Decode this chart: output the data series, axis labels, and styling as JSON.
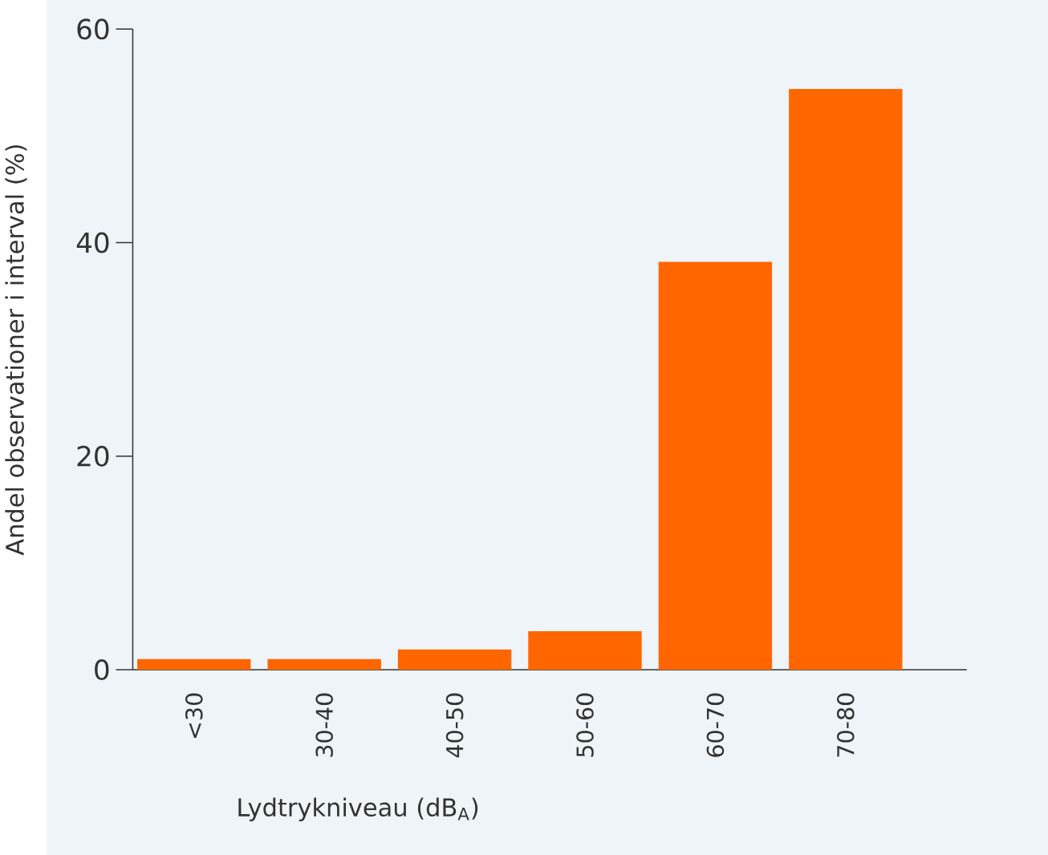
{
  "chart_data": {
    "type": "bar",
    "xlabel": "Lydtrykniveau (dB$_{A}$)",
    "ylabel": "Andel observationer i interval (%)",
    "categories": [
      "<30",
      "30-40",
      "40-50",
      "50-60",
      "60-70",
      "70-80"
    ],
    "values": [
      1.0,
      1.0,
      1.9,
      3.6,
      38.2,
      54.4
    ],
    "color": "#ff6600",
    "ylim": [
      0,
      60
    ],
    "yticks": [
      0,
      20,
      40,
      60
    ]
  }
}
